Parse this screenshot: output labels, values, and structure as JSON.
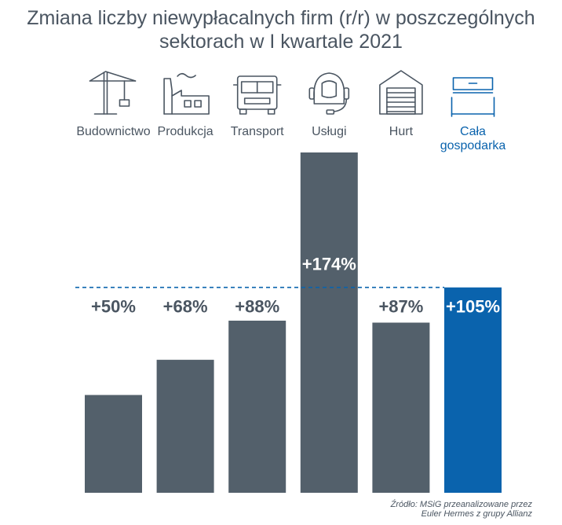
{
  "title": {
    "line1": "Zmiana liczby niewypłacalnych firm (r/r) w poszczególnych",
    "line2": "sektorach w I kwartale 2021"
  },
  "source": {
    "line1": "Źródło: MSiG przeanalizowane przez",
    "line2": "Euler Hermes z grupy Allianz"
  },
  "colors": {
    "bar": "#53606b",
    "highlight": "#0a63ad",
    "text": "#4a5561",
    "reference_line": "#0a63ad"
  },
  "chart_data": {
    "type": "bar",
    "categories": [
      "Budownictwo",
      "Produkcja",
      "Transport",
      "Usługi",
      "Hurt",
      "Cała gospodarka"
    ],
    "category_labels": [
      [
        "Budownictwo"
      ],
      [
        "Produkcja"
      ],
      [
        "Transport"
      ],
      [
        "Usługi"
      ],
      [
        "Hurt"
      ],
      [
        "Cała",
        "gospodarka"
      ]
    ],
    "values": [
      50,
      68,
      88,
      174,
      87,
      105
    ],
    "value_labels": [
      "+50%",
      "+68%",
      "+88%",
      "+174%",
      "+87%",
      "+105%"
    ],
    "unit": "%",
    "icons": [
      "crane-icon",
      "factory-icon",
      "truck-icon",
      "headset-icon",
      "warehouse-icon",
      "economy-icon"
    ],
    "highlight_index": 5,
    "reference_line": {
      "value": 105,
      "style": "dashed"
    },
    "ylim": [
      0,
      174
    ],
    "grid": false,
    "legend": "none"
  }
}
